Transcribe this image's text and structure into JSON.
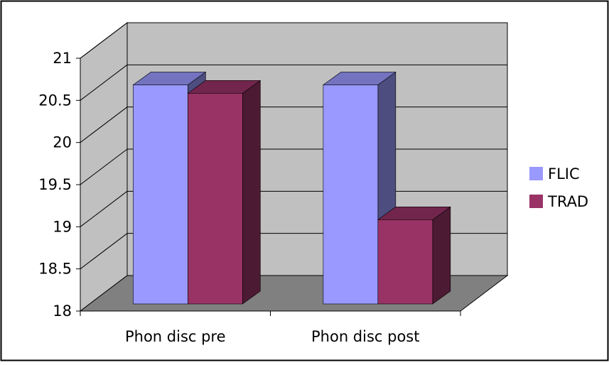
{
  "chart_data": {
    "type": "bar",
    "style": "3d-clustered-column",
    "categories": [
      "Phon disc pre",
      "Phon disc post"
    ],
    "series": [
      {
        "name": "FLIC",
        "values": [
          20.6,
          20.6
        ],
        "color": "#9999ff"
      },
      {
        "name": "TRAD",
        "values": [
          20.5,
          19.0
        ],
        "color": "#993366"
      }
    ],
    "ylim": [
      18,
      21
    ],
    "yticks": [
      "18",
      "18.5",
      "19",
      "19.5",
      "20",
      "20.5",
      "21"
    ],
    "grid": true,
    "legend": "right",
    "colors": {
      "wall": "#c0c0c0",
      "floor": "#808080",
      "border": "#000000"
    }
  }
}
